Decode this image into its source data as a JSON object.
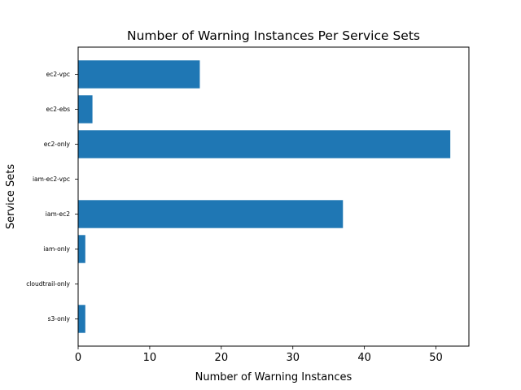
{
  "chart_data": {
    "type": "bar",
    "orientation": "horizontal",
    "title": "Number of Warning Instances Per Service Sets",
    "xlabel": "Number of Warning Instances",
    "ylabel": "Service Sets",
    "categories": [
      "ec2-vpc",
      "ec2-ebs",
      "ec2-only",
      "iam-ec2-vpc",
      "iam-ec2",
      "iam-only",
      "cloudtrail-only",
      "s3-only"
    ],
    "values": [
      17,
      2,
      52,
      0,
      37,
      1,
      0,
      1
    ],
    "xlim": [
      0,
      54.6
    ],
    "xticks": [
      0,
      10,
      20,
      30,
      40,
      50
    ],
    "grid": false,
    "bar_color": "#1f77b4"
  }
}
